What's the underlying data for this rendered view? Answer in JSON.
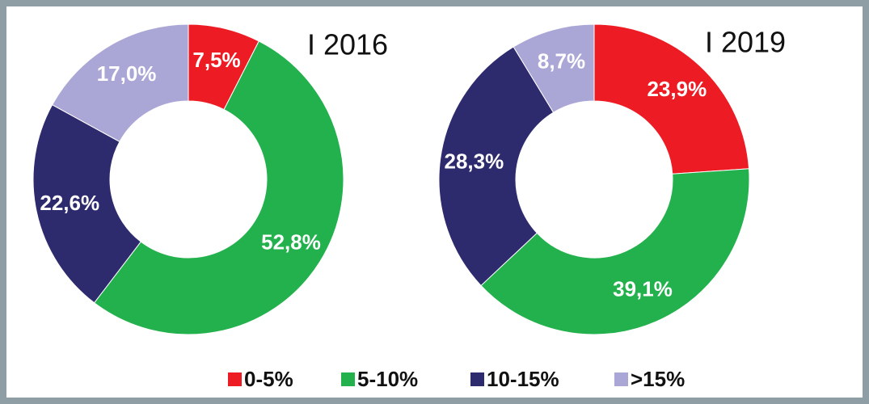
{
  "chart_data": [
    {
      "type": "pie",
      "title": "I 2016",
      "categories": [
        "0-5%",
        "5-10%",
        "10-15%",
        ">15%"
      ],
      "values": [
        7.5,
        52.8,
        22.6,
        17.0
      ],
      "value_labels": [
        "7,5%",
        "52,8%",
        "22,6%",
        "17,0%"
      ],
      "colors": [
        "#ed1c24",
        "#22b14c",
        "#2e2a6e",
        "#aaa7d6"
      ]
    },
    {
      "type": "pie",
      "title": "I 2019",
      "categories": [
        "0-5%",
        "5-10%",
        "10-15%",
        ">15%"
      ],
      "values": [
        23.9,
        39.1,
        28.3,
        8.7
      ],
      "value_labels": [
        "23,9%",
        "39,1%",
        "28,3%",
        "8,7%"
      ],
      "colors": [
        "#ed1c24",
        "#22b14c",
        "#2e2a6e",
        "#aaa7d6"
      ]
    }
  ]
}
